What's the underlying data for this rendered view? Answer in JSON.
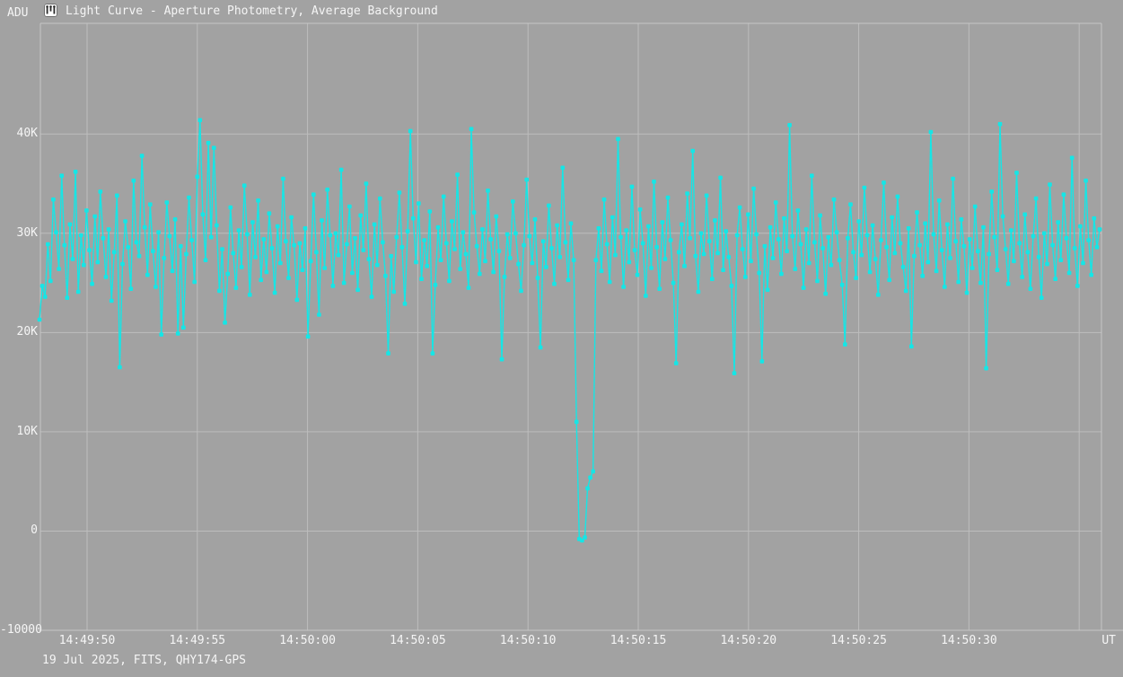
{
  "header": {
    "y_unit_label": "ADU",
    "icon": "light-curve-icon",
    "title": "Light Curve - Aperture Photometry, Average Background"
  },
  "footer": {
    "info": "19 Jul 2025, FITS, QHY174-GPS",
    "x_unit_label": "UT"
  },
  "colors": {
    "background": "#a2a2a2",
    "grid": "#bdbdbd",
    "border": "#c6c6c6",
    "series": "#15e6e6",
    "text": "#f5f5f5",
    "icon_glyph": "#2b2b2b"
  },
  "chart_data": {
    "type": "line",
    "title": "Light Curve - Aperture Photometry, Average Background",
    "xlabel": "UT",
    "ylabel": "ADU",
    "grid": true,
    "marker": "square",
    "ylim": [
      -10000,
      51150
    ],
    "y_ticks": [
      {
        "label": "40K",
        "value": 40000
      },
      {
        "label": "30K",
        "value": 30000
      },
      {
        "label": "20K",
        "value": 20000
      },
      {
        "label": "10K",
        "value": 10000
      },
      {
        "label": "0",
        "value": 0
      },
      {
        "label": "-10000",
        "value": -10000
      }
    ],
    "x_ticks": [
      "14:49:50",
      "14:49:55",
      "14:50:00",
      "14:50:05",
      "14:50:10",
      "14:50:15",
      "14:50:20",
      "14:50:25",
      "14:50:30"
    ],
    "x_tick_interval_s": 5,
    "x_start_estimate": "14:49:47.8",
    "x_sample_interval_s": 0.125,
    "series": [
      {
        "name": "aperture-photometry-adu",
        "values": [
          21300,
          24700,
          23600,
          28900,
          25200,
          33400,
          30100,
          26400,
          35800,
          28800,
          23500,
          30900,
          27400,
          36200,
          24100,
          29800,
          26800,
          32300,
          28300,
          24900,
          31700,
          27100,
          34200,
          29500,
          25600,
          30400,
          23200,
          28100,
          33800,
          16500,
          26900,
          31200,
          28600,
          24400,
          35300,
          29100,
          27700,
          37800,
          30600,
          25800,
          32900,
          28200,
          24600,
          30100,
          19800,
          27500,
          33100,
          29700,
          26200,
          31400,
          19900,
          28700,
          20500,
          27900,
          33600,
          29300,
          25100,
          35700,
          41400,
          31900,
          27300,
          39100,
          29600,
          38600,
          30800,
          24200,
          28400,
          21000,
          25900,
          32600,
          28000,
          24500,
          30300,
          26600,
          34800,
          29900,
          23800,
          31100,
          27600,
          33300,
          25300,
          29400,
          26100,
          32000,
          28500,
          24000,
          30700,
          27000,
          35500,
          29200,
          25500,
          31600,
          28800,
          23300,
          29000,
          26300,
          30500,
          19600,
          27200,
          33900,
          28100,
          21800,
          31300,
          26500,
          34400,
          29800,
          24700,
          30000,
          27800,
          36400,
          25000,
          28900,
          32700,
          26000,
          29500,
          24300,
          31800,
          28300,
          35000,
          27400,
          23600,
          30900,
          26800,
          33500,
          29100,
          25700,
          17900,
          27700,
          24100,
          29600,
          34100,
          28600,
          22900,
          30200,
          40300,
          31500,
          27100,
          33000,
          25400,
          29300,
          26700,
          32200,
          17900,
          24800,
          30600,
          27300,
          33700,
          29000,
          25200,
          31200,
          28400,
          35900,
          26400,
          30100,
          27900,
          24500,
          40500,
          32100,
          28700,
          25900,
          30400,
          27200,
          34300,
          29400,
          26100,
          31700,
          28200,
          17300,
          25600,
          29900,
          27500,
          33200,
          30000,
          26900,
          24200,
          28800,
          35400,
          29700,
          27000,
          31400,
          25500,
          18500,
          29200,
          26600,
          32800,
          28500,
          24900,
          30800,
          27600,
          36600,
          29100,
          25300,
          31000,
          27300,
          11000,
          -800,
          -950,
          -650,
          4300,
          5400,
          6000,
          27300,
          30500,
          26200,
          33400,
          28900,
          25100,
          31600,
          27800,
          39500,
          29600,
          24600,
          30300,
          27100,
          34700,
          28300,
          25800,
          32400,
          29000,
          23700,
          30700,
          26500,
          35200,
          28600,
          24400,
          31100,
          27400,
          33600,
          29300,
          25000,
          16900,
          28100,
          30900,
          26700,
          34000,
          29500,
          38300,
          27700,
          24100,
          30000,
          27900,
          33800,
          29200,
          25400,
          31300,
          28000,
          35600,
          26300,
          30200,
          27600,
          24700,
          15900,
          29800,
          32600,
          28400,
          25600,
          31900,
          27200,
          34500,
          29900,
          26000,
          17100,
          28700,
          24300,
          30600,
          27500,
          33100,
          29400,
          25900,
          31500,
          28200,
          40900,
          29700,
          26400,
          32300,
          28900,
          24500,
          30400,
          27000,
          35800,
          29100,
          25200,
          31800,
          28500,
          23900,
          29600,
          26800,
          33400,
          30100,
          27300,
          24800,
          18800,
          29500,
          32900,
          28100,
          25500,
          31200,
          27800,
          34600,
          29800,
          26100,
          30800,
          27400,
          23800,
          29300,
          35100,
          28600,
          25300,
          31600,
          28000,
          33700,
          29000,
          26600,
          24200,
          30500,
          18600,
          27700,
          32100,
          28800,
          25700,
          31000,
          27100,
          40200,
          29900,
          26200,
          33300,
          28300,
          24600,
          30900,
          27500,
          35500,
          29200,
          25100,
          31400,
          28700,
          24000,
          29400,
          26500,
          32700,
          28200,
          25000,
          30600,
          16400,
          27900,
          34200,
          29600,
          26300,
          41000,
          31700,
          28400,
          24900,
          30300,
          27200,
          36100,
          29000,
          25600,
          31900,
          28100,
          24400,
          29700,
          33500,
          27600,
          23500,
          30000,
          26900,
          34900,
          28800,
          25400,
          31100,
          27300,
          33900,
          29500,
          26000,
          37600,
          28500,
          24700,
          30700,
          27000,
          35300,
          29300,
          25800,
          31500,
          28600,
          30400
        ]
      }
    ]
  }
}
